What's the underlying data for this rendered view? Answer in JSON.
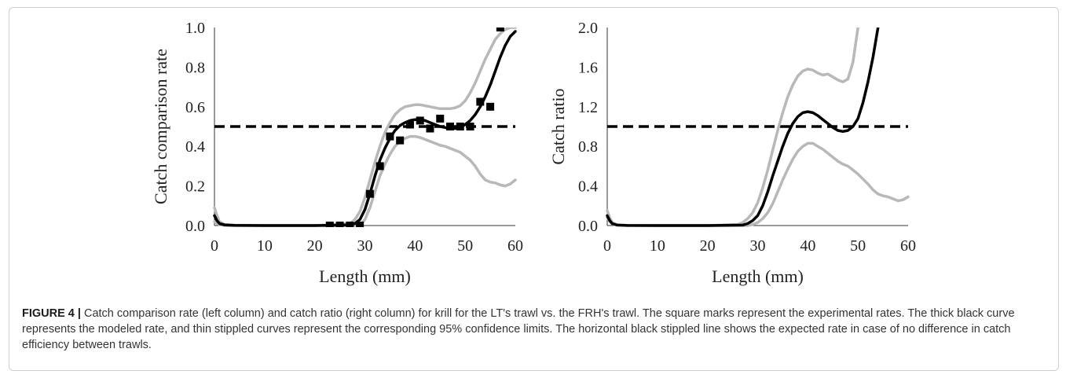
{
  "chart_data": [
    {
      "type": "line",
      "xlabel": "Length (mm)",
      "ylabel": "Catch comparison rate",
      "xlim": [
        0,
        60
      ],
      "ylim": [
        0,
        1.0
      ],
      "x_ticks": [
        "0",
        "10",
        "20",
        "30",
        "40",
        "50",
        "60"
      ],
      "y_ticks": [
        "0.0",
        "0.2",
        "0.4",
        "0.6",
        "0.8",
        "1.0"
      ],
      "reference_line": 0.5,
      "series": [
        {
          "role": "modeled rate",
          "style": "thick black",
          "x": [
            0,
            0.5,
            1,
            2,
            4,
            10,
            20,
            27,
            28,
            29,
            30,
            31,
            32,
            33,
            34,
            35,
            36,
            37,
            38,
            39,
            40,
            41,
            42,
            43,
            44,
            45,
            46,
            47,
            48,
            49,
            50,
            51,
            52,
            53,
            54,
            55,
            56,
            57,
            58,
            59,
            60
          ],
          "y": [
            0.05,
            0.025,
            0.01,
            0.003,
            0.001,
            0,
            0,
            0.003,
            0.01,
            0.03,
            0.08,
            0.16,
            0.25,
            0.33,
            0.39,
            0.44,
            0.48,
            0.505,
            0.52,
            0.53,
            0.535,
            0.535,
            0.53,
            0.52,
            0.51,
            0.5,
            0.495,
            0.49,
            0.49,
            0.495,
            0.51,
            0.53,
            0.56,
            0.6,
            0.65,
            0.71,
            0.78,
            0.85,
            0.91,
            0.955,
            0.98
          ]
        },
        {
          "role": "upper 95% confidence limit",
          "style": "thin gray",
          "x": [
            0,
            0.5,
            1,
            2,
            4,
            10,
            20,
            27,
            28,
            29,
            30,
            31,
            32,
            33,
            34,
            35,
            36,
            37,
            38,
            39,
            40,
            41,
            42,
            43,
            44,
            45,
            46,
            47,
            48,
            49,
            50,
            51,
            52,
            53,
            54,
            55,
            56,
            57,
            58,
            59,
            60
          ],
          "y": [
            0.09,
            0.05,
            0.02,
            0.006,
            0.002,
            0,
            0,
            0.01,
            0.03,
            0.07,
            0.14,
            0.23,
            0.32,
            0.4,
            0.47,
            0.52,
            0.56,
            0.585,
            0.6,
            0.605,
            0.61,
            0.61,
            0.605,
            0.6,
            0.595,
            0.59,
            0.59,
            0.59,
            0.595,
            0.605,
            0.63,
            0.67,
            0.72,
            0.78,
            0.84,
            0.89,
            0.94,
            0.97,
            0.99,
            1.0,
            1.0
          ]
        },
        {
          "role": "lower 95% confidence limit",
          "style": "thin gray",
          "x": [
            0,
            0.5,
            1,
            2,
            4,
            10,
            20,
            29,
            30,
            31,
            32,
            33,
            34,
            35,
            36,
            37,
            38,
            39,
            40,
            41,
            42,
            43,
            44,
            45,
            46,
            47,
            48,
            49,
            50,
            51,
            52,
            53,
            54,
            55,
            56,
            57,
            58,
            59,
            60
          ],
          "y": [
            0.02,
            0.01,
            0.004,
            0.001,
            0,
            0,
            0,
            0,
            0.03,
            0.09,
            0.17,
            0.25,
            0.31,
            0.36,
            0.4,
            0.425,
            0.44,
            0.45,
            0.45,
            0.445,
            0.435,
            0.425,
            0.415,
            0.405,
            0.4,
            0.39,
            0.38,
            0.37,
            0.35,
            0.33,
            0.3,
            0.26,
            0.23,
            0.22,
            0.215,
            0.205,
            0.2,
            0.21,
            0.23
          ]
        },
        {
          "role": "experimental rates",
          "style": "square markers",
          "x": [
            23,
            25,
            27,
            29,
            31,
            33,
            35,
            37,
            39,
            41,
            43,
            45,
            47,
            49,
            51,
            53,
            55,
            57
          ],
          "y": [
            0,
            0,
            0,
            0,
            0.16,
            0.3,
            0.45,
            0.43,
            0.51,
            0.53,
            0.49,
            0.54,
            0.5,
            0.5,
            0.5,
            0.625,
            0.6,
            1.0
          ]
        }
      ]
    },
    {
      "type": "line",
      "xlabel": "Length (mm)",
      "ylabel": "Catch ratio",
      "xlim": [
        0,
        60
      ],
      "ylim": [
        0,
        2.0
      ],
      "x_ticks": [
        "0",
        "10",
        "20",
        "30",
        "40",
        "50",
        "60"
      ],
      "y_ticks": [
        "0.0",
        "0.4",
        "0.8",
        "1.2",
        "1.6",
        "2.0"
      ],
      "reference_line": 1.0,
      "series": [
        {
          "role": "modeled ratio",
          "style": "thick black",
          "x": [
            0,
            0.5,
            1,
            2,
            4,
            10,
            20,
            27,
            28,
            29,
            30,
            31,
            32,
            33,
            34,
            35,
            36,
            37,
            38,
            39,
            40,
            41,
            42,
            43,
            44,
            45,
            46,
            47,
            48,
            49,
            50,
            51,
            52,
            53,
            54
          ],
          "y": [
            0.1,
            0.05,
            0.02,
            0.005,
            0.001,
            0,
            0,
            0.005,
            0.02,
            0.05,
            0.1,
            0.2,
            0.34,
            0.5,
            0.65,
            0.8,
            0.93,
            1.03,
            1.1,
            1.14,
            1.15,
            1.14,
            1.11,
            1.07,
            1.03,
            0.99,
            0.96,
            0.95,
            0.96,
            1.0,
            1.08,
            1.24,
            1.45,
            1.7,
            2.0
          ]
        },
        {
          "role": "upper 95% confidence limit",
          "style": "thin gray",
          "x": [
            0,
            0.5,
            1,
            2,
            4,
            10,
            20,
            26,
            27,
            28,
            29,
            30,
            31,
            32,
            33,
            34,
            35,
            36,
            37,
            38,
            39,
            40,
            41,
            42,
            43,
            44,
            45,
            46,
            47,
            48,
            49,
            50
          ],
          "y": [
            0.15,
            0.08,
            0.03,
            0.008,
            0.002,
            0,
            0,
            0.01,
            0.03,
            0.07,
            0.13,
            0.23,
            0.38,
            0.56,
            0.76,
            0.96,
            1.14,
            1.3,
            1.42,
            1.51,
            1.56,
            1.58,
            1.57,
            1.54,
            1.52,
            1.53,
            1.5,
            1.47,
            1.45,
            1.48,
            1.65,
            2.0
          ]
        },
        {
          "role": "lower 95% confidence limit",
          "style": "thin gray",
          "x": [
            0,
            0.5,
            1,
            2,
            4,
            10,
            20,
            28,
            29,
            30,
            31,
            32,
            33,
            34,
            35,
            36,
            37,
            38,
            39,
            40,
            41,
            42,
            43,
            44,
            45,
            46,
            47,
            48,
            49,
            50,
            51,
            52,
            53,
            54,
            55,
            56,
            57,
            58,
            59,
            60
          ],
          "y": [
            0.08,
            0.04,
            0.015,
            0.004,
            0.001,
            0,
            0,
            0,
            0.01,
            0.03,
            0.07,
            0.13,
            0.22,
            0.34,
            0.46,
            0.57,
            0.67,
            0.75,
            0.8,
            0.83,
            0.83,
            0.8,
            0.77,
            0.73,
            0.69,
            0.65,
            0.62,
            0.6,
            0.56,
            0.52,
            0.47,
            0.42,
            0.36,
            0.32,
            0.3,
            0.29,
            0.27,
            0.25,
            0.26,
            0.29
          ]
        }
      ]
    }
  ],
  "caption": {
    "label": "FIGURE 4 |",
    "text": " Catch comparison rate (left column) and catch ratio (right column) for krill for the LT's trawl vs. the FRH's trawl. The square marks represent the experimental rates. The thick black curve represents the modeled rate, and thin stippled curves represent the corresponding 95% confidence limits. The horizontal black stippled line shows the expected rate in case of no difference in catch efficiency between trawls."
  }
}
